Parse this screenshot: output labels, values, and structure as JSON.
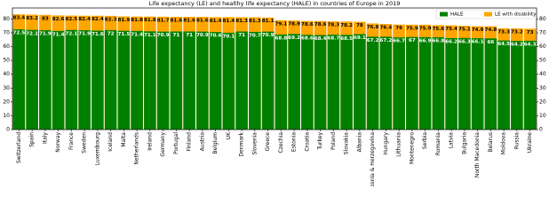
{
  "chart_data": {
    "type": "overlay-bar",
    "title": "Life expectancy (LE) and healthy life expectancy (HALE) in countries of Europe in 2019",
    "categories": [
      "Switzerland",
      "Spain",
      "Italy",
      "Norway",
      "France",
      "Sweden",
      "Luxembourg",
      "Iceland",
      "Malta",
      "Netherlands",
      "Ireland",
      "Germany",
      "Portugal",
      "Finland",
      "Austria",
      "Belgium",
      "UK",
      "Denmark",
      "Slovenia",
      "Greece",
      "Czechia",
      "Estonia",
      "Croatia",
      "Turkey",
      "Poland",
      "Slovakia",
      "Albania",
      "Bosnia & Herzegovina",
      "Hungary",
      "Lithuania",
      "Montenegro",
      "Serbia",
      "Romania",
      "Latvia",
      "Bulgaria",
      "North Macedonia",
      "Belarus",
      "Moldova",
      "Russia",
      "Ukraine"
    ],
    "series": [
      {
        "name": "LE with disability",
        "color": "#ffa500",
        "values": [
          83.4,
          83.2,
          83.0,
          82.6,
          82.5,
          82.4,
          82.4,
          82.3,
          81.9,
          81.8,
          81.8,
          81.7,
          81.6,
          81.6,
          81.6,
          81.4,
          81.4,
          81.3,
          81.3,
          81.1,
          79.1,
          78.9,
          78.6,
          78.6,
          78.3,
          78.2,
          78.0,
          76.8,
          76.4,
          76.0,
          75.9,
          75.9,
          75.6,
          75.4,
          75.1,
          74.8,
          74.8,
          73.3,
          73.2,
          73.0
        ]
      },
      {
        "name": "HALE",
        "color": "#008000",
        "values": [
          72.5,
          72.1,
          71.9,
          71.4,
          72.1,
          71.9,
          71.6,
          72.0,
          71.5,
          71.4,
          71.1,
          70.9,
          71.0,
          71.0,
          70.9,
          70.6,
          70.1,
          71.0,
          70.7,
          70.9,
          68.8,
          69.2,
          68.6,
          68.4,
          68.7,
          68.5,
          69.1,
          67.2,
          67.2,
          66.7,
          67.0,
          66.9,
          66.8,
          66.2,
          66.3,
          66.1,
          66.0,
          64.5,
          64.2,
          64.3
        ]
      }
    ],
    "ylim": [
      0,
      88
    ],
    "yticks": [
      0,
      10,
      20,
      30,
      40,
      50,
      60,
      70,
      80
    ],
    "legend": "upper right"
  }
}
